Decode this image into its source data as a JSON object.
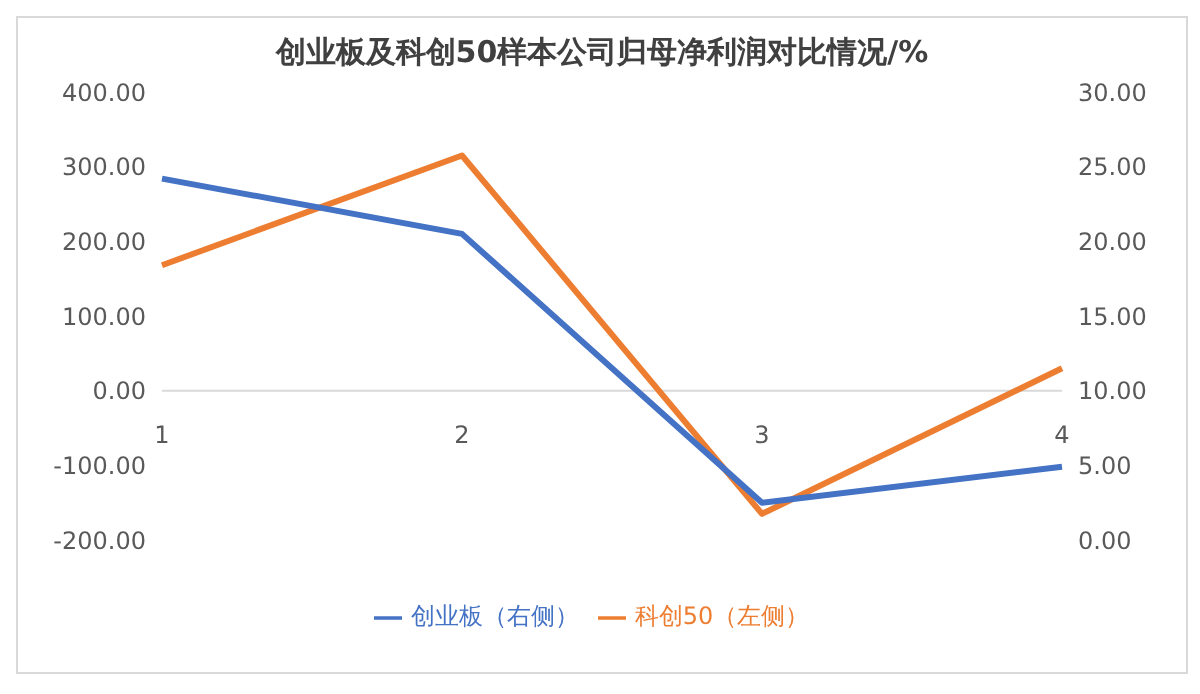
{
  "chart_data": {
    "type": "line",
    "title": "创业板及科创50样本公司归母净利润对比情况/%",
    "categories": [
      "1",
      "2",
      "3",
      "4"
    ],
    "series": [
      {
        "name": "科创50（左侧）",
        "color": "#ed7d31",
        "values": [
          168,
          315,
          -165,
          30
        ]
      },
      {
        "name": "创业板（右侧）",
        "color": "#4472c4",
        "values": [
          24.2,
          20.5,
          2.5,
          4.9
        ],
        "axis": "y2"
      }
    ],
    "ylim": [
      -200,
      400
    ],
    "yticks": [
      {
        "value": -200,
        "label": "-200.00"
      },
      {
        "value": -100,
        "label": "-100.00"
      },
      {
        "value": 0,
        "label": "0.00"
      },
      {
        "value": 100,
        "label": "100.00"
      },
      {
        "value": 200,
        "label": "200.00"
      },
      {
        "value": 300,
        "label": "300.00"
      },
      {
        "value": 400,
        "label": "400.00"
      }
    ],
    "y2lim": [
      0,
      30
    ],
    "y2ticks": [
      {
        "value": 0,
        "label": "0.00"
      },
      {
        "value": 5,
        "label": "5.00"
      },
      {
        "value": 10,
        "label": "10.00"
      },
      {
        "value": 15,
        "label": "15.00"
      },
      {
        "value": 20,
        "label": "20.00"
      },
      {
        "value": 25,
        "label": "25.00"
      },
      {
        "value": 30,
        "label": "30.00"
      }
    ],
    "legend": "bottom",
    "marker": "none",
    "line_style": "solid"
  }
}
